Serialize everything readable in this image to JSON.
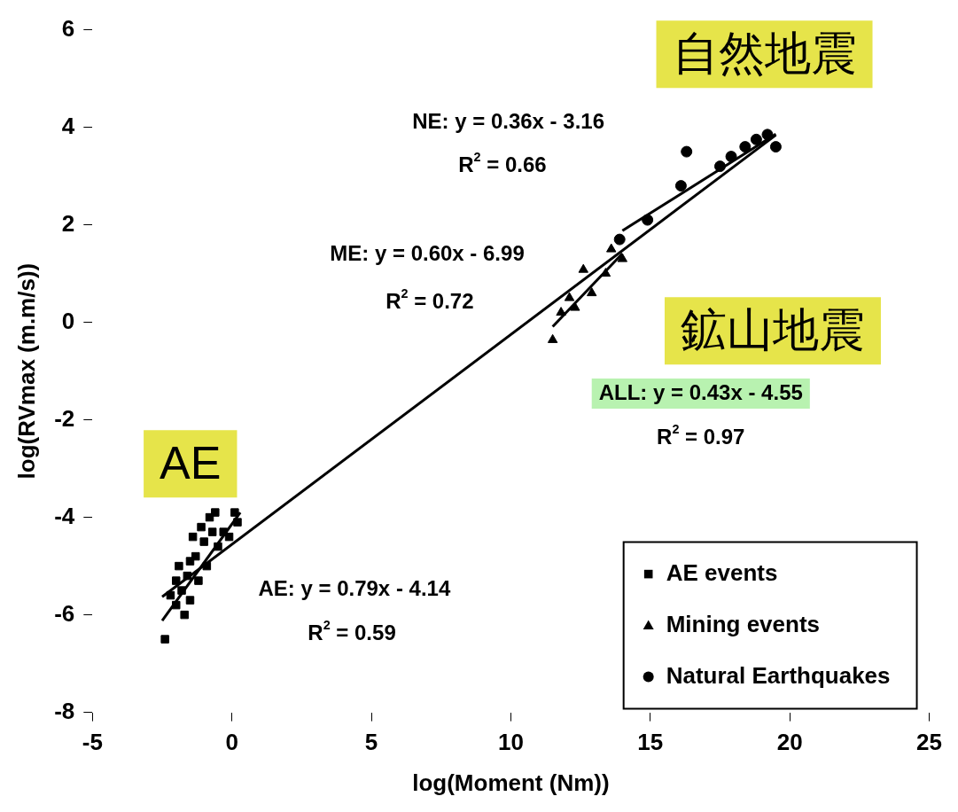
{
  "chart_data": {
    "type": "scatter",
    "xlabel": "log(Moment (Nm))",
    "ylabel": "log(RVmax (m.m/s))",
    "xlim": [
      -5,
      25
    ],
    "xticks": [
      -5,
      0,
      5,
      10,
      15,
      20,
      25
    ],
    "ylim": [
      -8,
      6
    ],
    "yticks": [
      -8,
      -6,
      -4,
      -2,
      0,
      2,
      4,
      6
    ],
    "grid": false,
    "legend": "bottom right",
    "series": [
      {
        "name": "AE events",
        "marker": "square",
        "color": "#000000",
        "x": [
          -2.4,
          -2.2,
          -2.0,
          -2.0,
          -1.8,
          -1.7,
          -1.6,
          -1.5,
          -1.5,
          -1.3,
          -1.2,
          -1.1,
          -1.0,
          -0.9,
          -0.8,
          -0.7,
          -0.5,
          -0.3,
          -0.1,
          0.1,
          0.2,
          -1.9,
          -1.4,
          -0.6
        ],
        "values": [
          -6.5,
          -5.6,
          -5.8,
          -5.3,
          -5.5,
          -6.0,
          -5.2,
          -5.7,
          -4.9,
          -4.8,
          -5.3,
          -4.2,
          -4.5,
          -5.0,
          -4.0,
          -4.3,
          -4.6,
          -4.3,
          -4.4,
          -3.9,
          -4.1,
          -5.0,
          -4.4,
          -3.9
        ]
      },
      {
        "name": "Mining events",
        "marker": "triangle",
        "color": "#000000",
        "x": [
          11.5,
          11.8,
          12.1,
          12.3,
          12.6,
          12.9,
          13.4,
          13.6,
          14.0
        ],
        "values": [
          -0.36,
          0.2,
          0.5,
          0.3,
          1.08,
          0.6,
          1.0,
          1.5,
          1.3
        ]
      },
      {
        "name": "Natural Earthquakes",
        "marker": "circle",
        "color": "#000000",
        "x": [
          13.9,
          14.9,
          16.1,
          16.3,
          17.5,
          17.9,
          18.4,
          18.8,
          19.2,
          19.5
        ],
        "values": [
          1.7,
          2.1,
          2.8,
          3.5,
          3.2,
          3.4,
          3.6,
          3.75,
          3.85,
          3.6
        ]
      },
      {
        "type": "line",
        "marker": "none",
        "color": "#000000",
        "x": [
          -2.5,
          19.5
        ],
        "values": [
          -5.63,
          3.84
        ]
      },
      {
        "type": "line",
        "marker": "none",
        "color": "#000000",
        "x": [
          -2.5,
          0.3
        ],
        "values": [
          -6.12,
          -3.9
        ]
      },
      {
        "type": "line",
        "marker": "none",
        "color": "#000000",
        "x": [
          11.5,
          14.0
        ],
        "values": [
          -0.09,
          1.41
        ]
      },
      {
        "type": "line",
        "marker": "none",
        "color": "#000000",
        "x": [
          14.0,
          19.5
        ],
        "values": [
          1.88,
          3.86
        ]
      }
    ],
    "annotations": [
      "自然地震",
      "鉱山地震",
      "AE",
      "NE: y = 0.36x - 3.16",
      "R$^{2}$ = 0.66",
      "ME: y = 0.60x - 6.99",
      "R$^{2}$ = 0.72",
      "ALL: y = 0.43x - 4.55",
      "R$^{2}$ = 0.97",
      "AE: y = 0.79x - 4.14",
      "R$^{2}$ = 0.59"
    ]
  }
}
